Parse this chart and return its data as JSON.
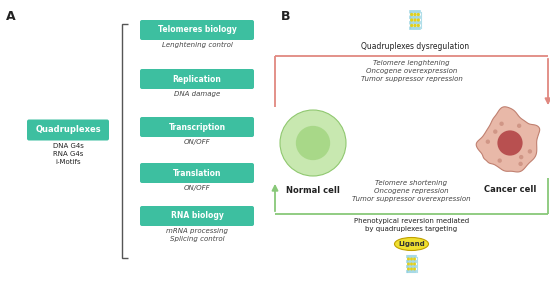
{
  "bg_color": "#ffffff",
  "teal_color": "#3dbfa0",
  "teal_text": "#ffffff",
  "panel_a_label": "A",
  "panel_b_label": "B",
  "quad_box_text": "Quadruplexes",
  "quad_subtypes": "DNA G4s\nRNA G4s\ni-Motifs",
  "teal_boxes": [
    "Telomeres biology",
    "Replication",
    "Transcription",
    "Translation",
    "RNA biology"
  ],
  "italic_labels": [
    "Lenghtening control",
    "DNA damage",
    "ON/OFF",
    "ON/OFF",
    "mRNA processing\nSplicing control"
  ],
  "arrow_top_color": "#e08880",
  "arrow_bottom_color": "#88c878",
  "normal_cell_outer": "#c8e8b0",
  "normal_cell_edge": "#90c870",
  "normal_cell_inner": "#a8d888",
  "cancer_cell_outer": "#e8b8a8",
  "cancer_cell_edge": "#c08070",
  "cancer_cell_inner": "#b85050",
  "ligand_color": "#f0e030",
  "ligand_edge": "#c0a000",
  "quadruplex_color": "#90d0e0",
  "quadruplex_dot": "#e0d020",
  "quadruplex_top_label": "Quadruplexes dysregulation",
  "arrow_top_text": "Telomere lenghtening\nOncogene overexpression\nTumor suppressor repression",
  "arrow_bottom_text": "Telomere shortening\nOncogene repression\nTumor suppressor overexpression",
  "bottom_text": "Phenotypical reversion mediated\nby quadruplexes targeting",
  "ligand_text": "Ligand",
  "normal_cell_label": "Normal cell",
  "cancer_cell_label": "Cancer cell",
  "bracket_color": "#555555",
  "text_color": "#444444",
  "label_color": "#222222"
}
